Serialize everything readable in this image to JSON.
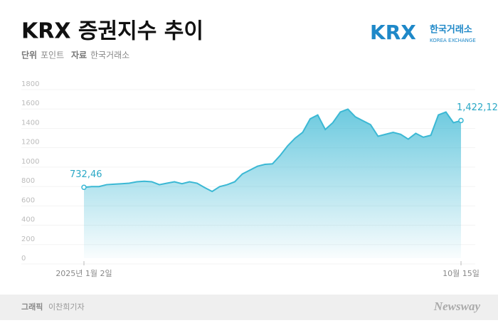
{
  "chart_data": {
    "type": "area",
    "title": "KRX 증권지수 추이",
    "unit_label": "단위",
    "unit": "포인트",
    "source_label": "자료",
    "source": "한국거래소",
    "logo": "KRX",
    "logo_korean": "한국거래소",
    "logo_english": "KOREA EXCHANGE",
    "credit_label": "그래픽",
    "credit": "이찬희기자",
    "brand": "Newsway",
    "categories": [
      "2025년 1월 2일",
      null,
      null,
      null,
      null,
      null,
      null,
      null,
      null,
      null,
      null,
      null,
      null,
      null,
      null,
      null,
      null,
      null,
      null,
      null,
      null,
      null,
      null,
      null,
      null,
      null,
      null,
      null,
      null,
      null,
      null,
      null,
      null,
      null,
      null,
      null,
      null,
      null,
      null,
      null,
      null,
      null,
      null,
      null,
      null,
      null,
      null,
      null,
      null,
      null,
      "10월 15일"
    ],
    "values": [
      732.46,
      740,
      740,
      760,
      765,
      770,
      775,
      790,
      795,
      790,
      760,
      775,
      790,
      770,
      790,
      775,
      730,
      690,
      740,
      760,
      790,
      870,
      910,
      950,
      970,
      975,
      1060,
      1160,
      1240,
      1300,
      1440,
      1480,
      1330,
      1400,
      1510,
      1540,
      1460,
      1420,
      1380,
      1260,
      1280,
      1300,
      1280,
      1230,
      1290,
      1250,
      1270,
      1480,
      1510,
      1400,
      1422.12
    ],
    "value_labels": [
      "732,46",
      null,
      null,
      null,
      null,
      null,
      null,
      null,
      null,
      null,
      null,
      null,
      null,
      null,
      null,
      null,
      null,
      null,
      null,
      null,
      null,
      null,
      null,
      null,
      null,
      null,
      null,
      null,
      null,
      null,
      null,
      null,
      null,
      null,
      null,
      null,
      null,
      null,
      null,
      null,
      null,
      null,
      null,
      null,
      null,
      null,
      null,
      null,
      null,
      null,
      "1,422,12"
    ],
    "color": "#3bb8d4",
    "ylim": [
      0,
      1800
    ],
    "yticks": [
      0,
      200,
      400,
      600,
      800,
      1000,
      1200,
      1400,
      1600,
      1800
    ],
    "grid": true
  }
}
